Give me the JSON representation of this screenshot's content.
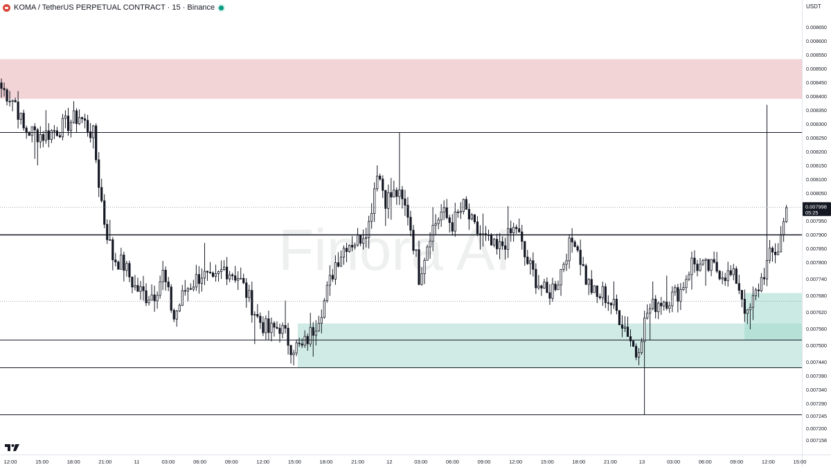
{
  "header": {
    "symbol_line": "KOMA / TetherUS PERPETUAL CONTRACT · 15 · Binance",
    "quote_currency": "USDT"
  },
  "watermark": "Finora AI",
  "price_marker": {
    "price": "0.007998",
    "countdown": "05:25"
  },
  "colors": {
    "up_body": "#ffffff",
    "down_body": "#131722",
    "wick": "#131722",
    "supply_zone": "#f2d3d6",
    "demand_zone": "#d0ebe5",
    "demand_zone_dark": "#a0d8cc",
    "level_line": "#131722"
  },
  "chart_data": {
    "type": "candlestick",
    "y_axis": {
      "range": [
        0.007158,
        0.0087
      ],
      "tick_labels": [
        "0.008650",
        "0.008600",
        "0.008550",
        "0.008500",
        "0.008450",
        "0.008400",
        "0.008350",
        "0.008300",
        "0.008250",
        "0.008200",
        "0.008150",
        "0.008100",
        "0.008050",
        "0.008000",
        "0.007950",
        "0.007900",
        "0.007850",
        "0.007800",
        "0.007740",
        "0.007680",
        "0.007620",
        "0.007560",
        "0.007500",
        "0.007440",
        "0.007390",
        "0.007340",
        "0.007290",
        "0.007245",
        "0.007200",
        "0.007158"
      ]
    },
    "x_axis": {
      "tick_labels": [
        "12:00",
        "15:00",
        "18:00",
        "21:00",
        "11",
        "03:00",
        "06:00",
        "09:00",
        "12:00",
        "15:00",
        "18:00",
        "21:00",
        "12",
        "03:00",
        "06:00",
        "09:00",
        "12:00",
        "15:00",
        "18:00",
        "21:00",
        "13",
        "03:00",
        "06:00",
        "09:00",
        "12:00",
        "15:00"
      ]
    },
    "horizontal_levels": [
      0.00827,
      0.0079,
      0.00752,
      0.00742,
      0.00725
    ],
    "zones": [
      {
        "kind": "supply",
        "from": 0.008535,
        "to": 0.008392
      },
      {
        "kind": "demand",
        "from": 0.00758,
        "to": 0.00742
      },
      {
        "kind": "demand",
        "from": 0.00769,
        "to": 0.00752
      }
    ],
    "anchors": [
      [
        0,
        0.00843
      ],
      [
        5,
        0.00838
      ],
      [
        8,
        0.00828
      ],
      [
        15,
        0.00826
      ],
      [
        22,
        0.00829
      ],
      [
        28,
        0.00833
      ],
      [
        33,
        0.00826
      ],
      [
        35,
        0.00809
      ],
      [
        37,
        0.00795
      ],
      [
        40,
        0.00782
      ],
      [
        44,
        0.00779
      ],
      [
        48,
        0.00771
      ],
      [
        52,
        0.00768
      ],
      [
        55,
        0.00769
      ],
      [
        58,
        0.00776
      ],
      [
        62,
        0.0076
      ],
      [
        66,
        0.0077
      ],
      [
        72,
        0.00776
      ],
      [
        76,
        0.00772
      ],
      [
        80,
        0.00778
      ],
      [
        85,
        0.00775
      ],
      [
        88,
        0.00769
      ],
      [
        92,
        0.0076
      ],
      [
        96,
        0.00755
      ],
      [
        100,
        0.00757
      ],
      [
        104,
        0.0075
      ],
      [
        108,
        0.00749
      ],
      [
        112,
        0.00756
      ],
      [
        116,
        0.00766
      ],
      [
        120,
        0.0078
      ],
      [
        124,
        0.00787
      ],
      [
        128,
        0.00788
      ],
      [
        132,
        0.00794
      ],
      [
        135,
        0.00814
      ],
      [
        138,
        0.00803
      ],
      [
        142,
        0.00805
      ],
      [
        146,
        0.00798
      ],
      [
        149,
        0.00782
      ],
      [
        150,
        0.00775
      ],
      [
        154,
        0.00791
      ],
      [
        158,
        0.00798
      ],
      [
        162,
        0.00794
      ],
      [
        166,
        0.008
      ],
      [
        170,
        0.00792
      ],
      [
        174,
        0.00788
      ],
      [
        178,
        0.00784
      ],
      [
        182,
        0.00789
      ],
      [
        185,
        0.00793
      ],
      [
        188,
        0.00782
      ],
      [
        192,
        0.00774
      ],
      [
        196,
        0.00768
      ],
      [
        200,
        0.00774
      ],
      [
        203,
        0.00784
      ],
      [
        206,
        0.00789
      ],
      [
        210,
        0.00774
      ],
      [
        214,
        0.00767
      ],
      [
        216,
        0.00769
      ],
      [
        220,
        0.00764
      ],
      [
        225,
        0.00755
      ],
      [
        228,
        0.00747
      ],
      [
        232,
        0.00762
      ],
      [
        236,
        0.00766
      ],
      [
        240,
        0.00767
      ],
      [
        244,
        0.0077
      ],
      [
        248,
        0.0078
      ],
      [
        252,
        0.00778
      ],
      [
        256,
        0.00778
      ],
      [
        260,
        0.00776
      ],
      [
        264,
        0.00774
      ],
      [
        266,
        0.00768
      ],
      [
        268,
        0.0076
      ],
      [
        270,
        0.00766
      ],
      [
        273,
        0.00774
      ],
      [
        276,
        0.00782
      ],
      [
        279,
        0.00785
      ],
      [
        282,
        0.00799
      ]
    ],
    "last_close": 0.007998
  }
}
